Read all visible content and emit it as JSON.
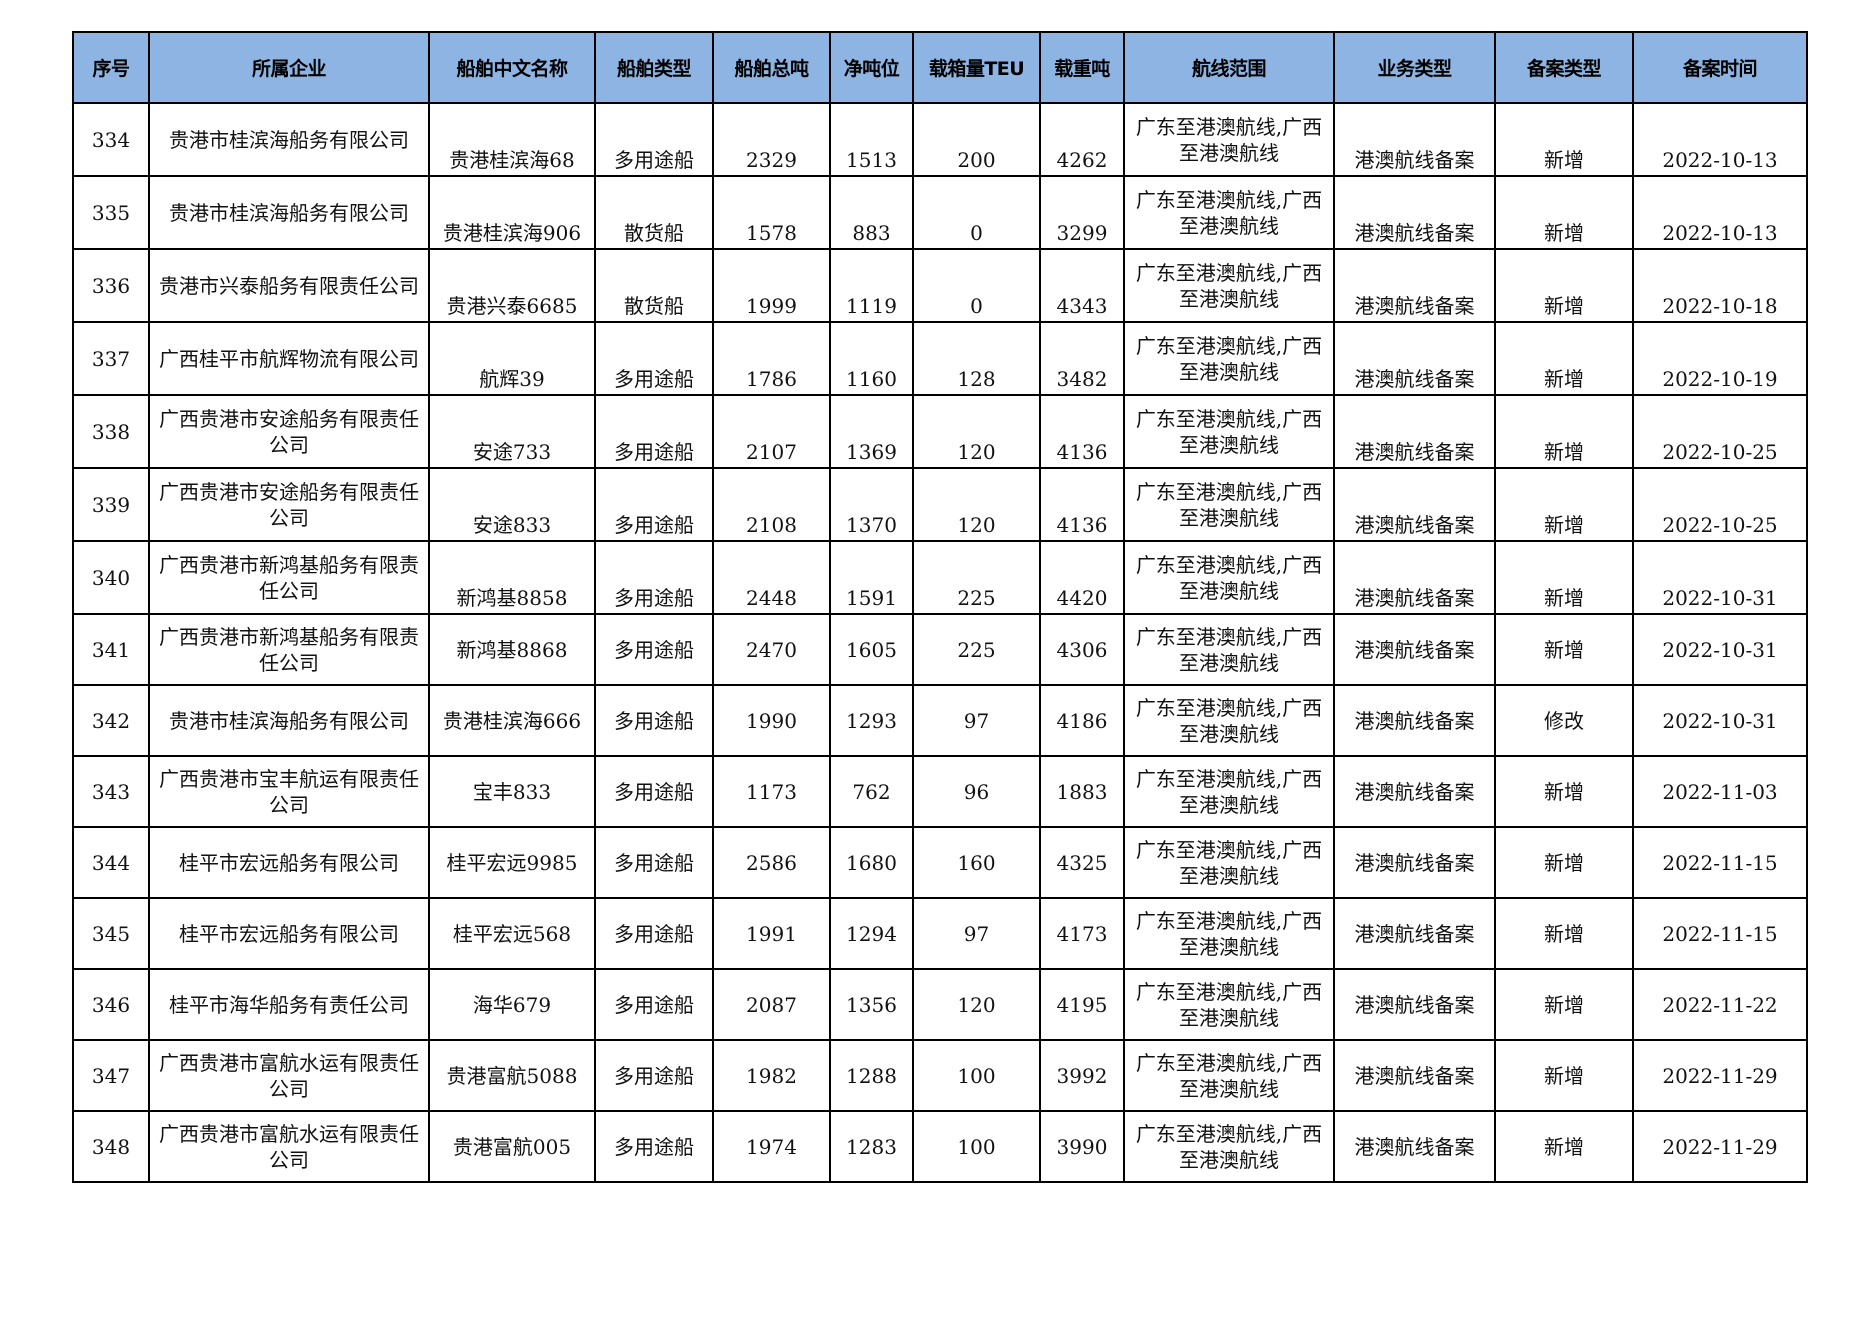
{
  "header_color": "#8DB4E2",
  "columns": [
    "序号",
    "所属企业",
    "船舶中文名称",
    "船舶类型",
    "船舶总吨",
    "净吨位",
    "载箱量TEU",
    "载重吨",
    "航线范围",
    "业务类型",
    "备案类型",
    "备案时间"
  ],
  "rows": [
    [
      "334",
      "贵港市桂滨海船务有限公司",
      "贵港桂滨海68",
      "多用途船",
      "2329",
      "1513",
      "200",
      "4262",
      "广东至港澳航线,广西至港澳航线",
      "港澳航线备案",
      "新增",
      "2022-10-13"
    ],
    [
      "335",
      "贵港市桂滨海船务有限公司",
      "贵港桂滨海906",
      "散货船",
      "1578",
      "883",
      "0",
      "3299",
      "广东至港澳航线,广西至港澳航线",
      "港澳航线备案",
      "新增",
      "2022-10-13"
    ],
    [
      "336",
      "贵港市兴泰船务有限责任公司",
      "贵港兴泰6685",
      "散货船",
      "1999",
      "1119",
      "0",
      "4343",
      "广东至港澳航线,广西至港澳航线",
      "港澳航线备案",
      "新增",
      "2022-10-18"
    ],
    [
      "337",
      "广西桂平市航辉物流有限公司",
      "航辉39",
      "多用途船",
      "1786",
      "1160",
      "128",
      "3482",
      "广东至港澳航线,广西至港澳航线",
      "港澳航线备案",
      "新增",
      "2022-10-19"
    ],
    [
      "338",
      "广西贵港市安途船务有限责任公司",
      "安途733",
      "多用途船",
      "2107",
      "1369",
      "120",
      "4136",
      "广东至港澳航线,广西至港澳航线",
      "港澳航线备案",
      "新增",
      "2022-10-25"
    ],
    [
      "339",
      "广西贵港市安途船务有限责任公司",
      "安途833",
      "多用途船",
      "2108",
      "1370",
      "120",
      "4136",
      "广东至港澳航线,广西至港澳航线",
      "港澳航线备案",
      "新增",
      "2022-10-25"
    ],
    [
      "340",
      "广西贵港市新鸿基船务有限责任公司",
      "新鸿基8858",
      "多用途船",
      "2448",
      "1591",
      "225",
      "4420",
      "广东至港澳航线,广西至港澳航线",
      "港澳航线备案",
      "新增",
      "2022-10-31"
    ],
    [
      "341",
      "广西贵港市新鸿基船务有限责任公司",
      "新鸿基8868",
      "多用途船",
      "2470",
      "1605",
      "225",
      "4306",
      "广东至港澳航线,广西至港澳航线",
      "港澳航线备案",
      "新增",
      "2022-10-31"
    ],
    [
      "342",
      "贵港市桂滨海船务有限公司",
      "贵港桂滨海666",
      "多用途船",
      "1990",
      "1293",
      "97",
      "4186",
      "广东至港澳航线,广西至港澳航线",
      "港澳航线备案",
      "修改",
      "2022-10-31"
    ],
    [
      "343",
      "广西贵港市宝丰航运有限责任公司",
      "宝丰833",
      "多用途船",
      "1173",
      "762",
      "96",
      "1883",
      "广东至港澳航线,广西至港澳航线",
      "港澳航线备案",
      "新增",
      "2022-11-03"
    ],
    [
      "344",
      "桂平市宏远船务有限公司",
      "桂平宏远9985",
      "多用途船",
      "2586",
      "1680",
      "160",
      "4325",
      "广东至港澳航线,广西至港澳航线",
      "港澳航线备案",
      "新增",
      "2022-11-15"
    ],
    [
      "345",
      "桂平市宏远船务有限公司",
      "桂平宏远568",
      "多用途船",
      "1991",
      "1294",
      "97",
      "4173",
      "广东至港澳航线,广西至港澳航线",
      "港澳航线备案",
      "新增",
      "2022-11-15"
    ],
    [
      "346",
      "桂平市海华船务有责任公司",
      "海华679",
      "多用途船",
      "2087",
      "1356",
      "120",
      "4195",
      "广东至港澳航线,广西至港澳航线",
      "港澳航线备案",
      "新增",
      "2022-11-22"
    ],
    [
      "347",
      "广西贵港市富航水运有限责任公司",
      "贵港富航5088",
      "多用途船",
      "1982",
      "1288",
      "100",
      "3992",
      "广东至港澳航线,广西至港澳航线",
      "港澳航线备案",
      "新增",
      "2022-11-29"
    ],
    [
      "348",
      "广西贵港市富航水运有限责任公司",
      "贵港富航005",
      "多用途船",
      "1974",
      "1283",
      "100",
      "3990",
      "广东至港澳航线,广西至港澳航线",
      "港澳航线备案",
      "新增",
      "2022-11-29"
    ]
  ]
}
